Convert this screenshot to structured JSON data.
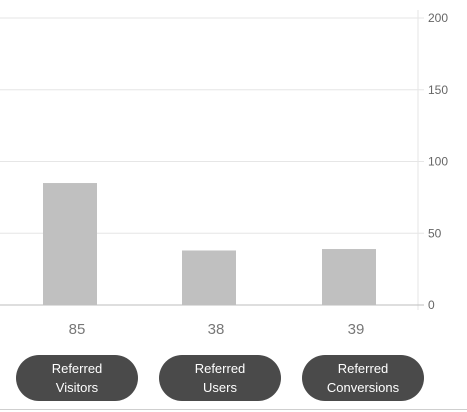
{
  "chart_data": {
    "type": "bar",
    "categories": [
      "Referred Visitors",
      "Referred Users",
      "Referred Conversions"
    ],
    "values": [
      85,
      38,
      39
    ],
    "data_labels": [
      "85",
      "38",
      "39"
    ],
    "y_ticks": [
      0,
      50,
      100,
      150,
      200
    ],
    "y_tick_labels": [
      "0",
      "50",
      "100",
      "150",
      "200"
    ],
    "ylim": [
      0,
      200
    ],
    "y_axis_position": "right",
    "grid": true,
    "title": "",
    "xlabel": "",
    "ylabel": "",
    "bar_color": "#c0c0c0",
    "grid_color": "#e6e6e6",
    "axis_color": "#bdbdbd",
    "label_color": "#777777"
  },
  "buttons": [
    {
      "line1": "Referred",
      "line2": "Visitors"
    },
    {
      "line1": "Referred",
      "line2": "Users"
    },
    {
      "line1": "Referred",
      "line2": "Conversions"
    }
  ],
  "colors": {
    "button_bg": "#4a4a4a",
    "button_text": "#ffffff"
  }
}
